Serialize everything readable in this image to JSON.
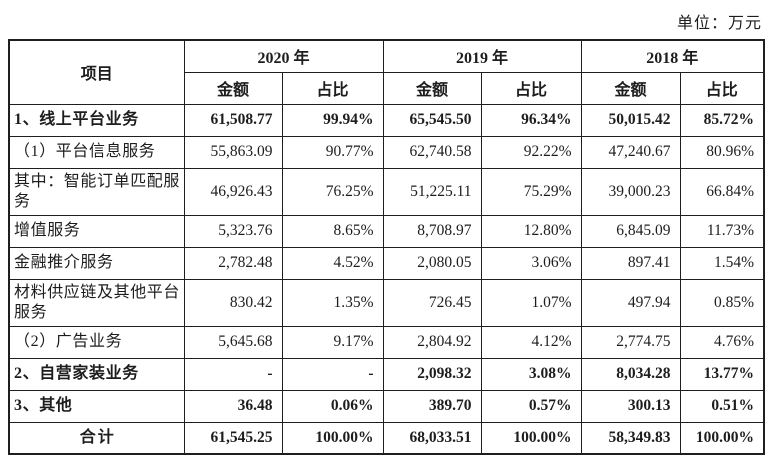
{
  "unit_label": "单位：万元",
  "table": {
    "item_header": "项目",
    "year_groups": [
      {
        "year": "2020 年",
        "amount_label": "金额",
        "ratio_label": "占比"
      },
      {
        "year": "2019 年",
        "amount_label": "金额",
        "ratio_label": "占比"
      },
      {
        "year": "2018 年",
        "amount_label": "金额",
        "ratio_label": "占比"
      }
    ],
    "rows": [
      {
        "label": "1、线上平台业务",
        "bold": true,
        "center": false,
        "values": [
          "61,508.77",
          "99.94%",
          "65,545.50",
          "96.34%",
          "50,015.42",
          "85.72%"
        ]
      },
      {
        "label": "（1）平台信息服务",
        "bold": false,
        "center": false,
        "values": [
          "55,863.09",
          "90.77%",
          "62,740.58",
          "92.22%",
          "47,240.67",
          "80.96%"
        ]
      },
      {
        "label": "其中：智能订单匹配服务",
        "bold": false,
        "center": false,
        "values": [
          "46,926.43",
          "76.25%",
          "51,225.11",
          "75.29%",
          "39,000.23",
          "66.84%"
        ]
      },
      {
        "label": "增值服务",
        "bold": false,
        "center": false,
        "values": [
          "5,323.76",
          "8.65%",
          "8,708.97",
          "12.80%",
          "6,845.09",
          "11.73%"
        ]
      },
      {
        "label": "金融推介服务",
        "bold": false,
        "center": false,
        "values": [
          "2,782.48",
          "4.52%",
          "2,080.05",
          "3.06%",
          "897.41",
          "1.54%"
        ]
      },
      {
        "label": "材料供应链及其他平台服务",
        "bold": false,
        "center": false,
        "values": [
          "830.42",
          "1.35%",
          "726.45",
          "1.07%",
          "497.94",
          "0.85%"
        ]
      },
      {
        "label": "（2）广告业务",
        "bold": false,
        "center": false,
        "values": [
          "5,645.68",
          "9.17%",
          "2,804.92",
          "4.12%",
          "2,774.75",
          "4.76%"
        ]
      },
      {
        "label": "2、自营家装业务",
        "bold": true,
        "center": false,
        "values": [
          "-",
          "-",
          "2,098.32",
          "3.08%",
          "8,034.28",
          "13.77%"
        ]
      },
      {
        "label": "3、其他",
        "bold": true,
        "center": false,
        "values": [
          "36.48",
          "0.06%",
          "389.70",
          "0.57%",
          "300.13",
          "0.51%"
        ]
      },
      {
        "label": "合计",
        "bold": true,
        "center": true,
        "values": [
          "61,545.25",
          "100.00%",
          "68,033.51",
          "100.00%",
          "58,349.83",
          "100.00%"
        ]
      }
    ]
  }
}
